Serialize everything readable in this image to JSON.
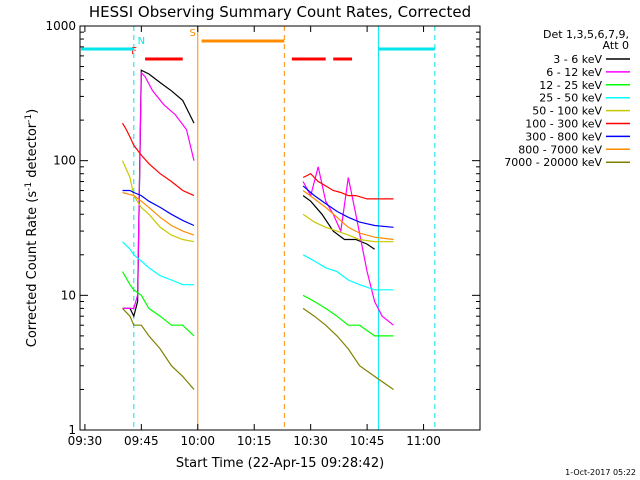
{
  "chart_data": {
    "type": "line",
    "title": "HESSI Observing Summary Count Rates, Corrected",
    "xlabel": "Start Time (22-Apr-15 09:28:42)",
    "ylabel": "Corrected Count Rate (s⁻¹ detector⁻¹)",
    "ylabel_main": "Corrected Count Rate (s",
    "ylabel_sup1": "-1",
    "ylabel_mid": " detector",
    "ylabel_sup2": "-1",
    "ylabel_end": ")",
    "yscale": "log",
    "ylim": [
      1,
      1000
    ],
    "xlim": [
      "09:28:42",
      "11:15:00"
    ],
    "x_ticks": [
      "09:30",
      "09:45",
      "10:00",
      "10:15",
      "10:30",
      "10:45",
      "11:00"
    ],
    "y_ticks": [
      "1",
      "10",
      "100",
      "1000"
    ],
    "footer_stamp": "1-Oct-2017 05:22",
    "legend": {
      "position": "right",
      "header": [
        "Det 1,3,5,6,7,9,",
        "Att 0"
      ]
    },
    "flag_markers": [
      {
        "label": "F",
        "color": "#ff0000",
        "segments": [
          [
            "09:46",
            "09:56"
          ],
          [
            "10:25",
            "10:34"
          ],
          [
            "10:36",
            "10:41"
          ]
        ]
      },
      {
        "label": "N",
        "color": "#00e5ee",
        "segments": [
          [
            "09:29",
            "09:43"
          ],
          [
            "10:48",
            "11:03"
          ]
        ]
      },
      {
        "label": "S",
        "color": "#ff8c00",
        "segments": [
          [
            "10:01",
            "10:23"
          ]
        ]
      }
    ],
    "vertical_lines": [
      {
        "time": "09:43",
        "color": "#00e5ee",
        "style": "dashed"
      },
      {
        "time": "10:00",
        "color": "#ff8c00",
        "style": "solid"
      },
      {
        "time": "10:23",
        "color": "#ff8c00",
        "style": "dashed"
      },
      {
        "time": "10:48",
        "color": "#00e5ee",
        "style": "solid"
      },
      {
        "time": "11:03",
        "color": "#00e5ee",
        "style": "dashed"
      }
    ],
    "series": [
      {
        "name": "3 - 6 keV",
        "color": "#000000",
        "segments": [
          {
            "x": [
              "09:40",
              "09:42",
              "09:43",
              "09:44",
              "09:45",
              "09:47",
              "09:50",
              "09:53",
              "09:56",
              "09:59"
            ],
            "y": [
              8,
              8,
              7,
              9,
              470,
              440,
              380,
              330,
              280,
              190
            ]
          },
          {
            "x": [
              "10:28",
              "10:30",
              "10:33",
              "10:36",
              "10:39",
              "10:42",
              "10:45",
              "10:47"
            ],
            "y": [
              55,
              50,
              40,
              30,
              26,
              26,
              24,
              22
            ]
          }
        ]
      },
      {
        "name": "6 - 12 keV",
        "color": "#ff00ff",
        "segments": [
          {
            "x": [
              "09:40",
              "09:43",
              "09:44",
              "09:45",
              "09:46",
              "09:48",
              "09:51",
              "09:54",
              "09:57",
              "09:59"
            ],
            "y": [
              8,
              8,
              10,
              450,
              420,
              330,
              260,
              220,
              170,
              100
            ]
          },
          {
            "x": [
              "10:28",
              "10:30",
              "10:32",
              "10:34",
              "10:36",
              "10:38",
              "10:40",
              "10:42",
              "10:45",
              "10:47",
              "10:49",
              "10:52"
            ],
            "y": [
              70,
              55,
              90,
              50,
              40,
              30,
              75,
              40,
              15,
              9,
              7,
              6
            ]
          }
        ]
      },
      {
        "name": "12 - 25 keV",
        "color": "#00ff00",
        "segments": [
          {
            "x": [
              "09:40",
              "09:42",
              "09:43",
              "09:45",
              "09:47",
              "09:50",
              "09:53",
              "09:56",
              "09:59"
            ],
            "y": [
              15,
              12,
              11,
              10,
              8,
              7,
              6,
              6,
              5
            ]
          },
          {
            "x": [
              "10:28",
              "10:31",
              "10:34",
              "10:37",
              "10:40",
              "10:43",
              "10:47",
              "10:52"
            ],
            "y": [
              10,
              9,
              8,
              7,
              6,
              6,
              5,
              5
            ]
          }
        ]
      },
      {
        "name": "25 - 50 keV",
        "color": "#00ffff",
        "segments": [
          {
            "x": [
              "09:40",
              "09:42",
              "09:43",
              "09:45",
              "09:47",
              "09:50",
              "09:53",
              "09:56",
              "09:59"
            ],
            "y": [
              25,
              22,
              20,
              18,
              16,
              14,
              13,
              12,
              12
            ]
          },
          {
            "x": [
              "10:28",
              "10:31",
              "10:34",
              "10:37",
              "10:40",
              "10:43",
              "10:47",
              "10:52"
            ],
            "y": [
              20,
              18,
              16,
              15,
              13,
              12,
              11,
              11
            ]
          }
        ]
      },
      {
        "name": "50 - 100 keV",
        "color": "#c8c800",
        "segments": [
          {
            "x": [
              "09:40",
              "09:42",
              "09:43",
              "09:45",
              "09:47",
              "09:50",
              "09:53",
              "09:56",
              "09:59"
            ],
            "y": [
              100,
              75,
              55,
              45,
              40,
              32,
              28,
              26,
              25
            ]
          },
          {
            "x": [
              "10:28",
              "10:31",
              "10:34",
              "10:37",
              "10:40",
              "10:43",
              "10:47",
              "10:52"
            ],
            "y": [
              40,
              35,
              32,
              30,
              28,
              26,
              25,
              25
            ]
          }
        ]
      },
      {
        "name": "100 - 300 keV",
        "color": "#ff0000",
        "segments": [
          {
            "x": [
              "09:40",
              "09:41",
              "09:42",
              "09:43",
              "09:45",
              "09:47",
              "09:50",
              "09:53",
              "09:56",
              "09:59"
            ],
            "y": [
              190,
              170,
              150,
              130,
              110,
              95,
              80,
              70,
              60,
              55
            ]
          },
          {
            "x": [
              "10:28",
              "10:30",
              "10:32",
              "10:34",
              "10:36",
              "10:38",
              "10:40",
              "10:42",
              "10:45",
              "10:47",
              "10:49",
              "10:52"
            ],
            "y": [
              75,
              80,
              70,
              65,
              60,
              58,
              55,
              55,
              52,
              52,
              52,
              52
            ]
          }
        ]
      },
      {
        "name": "300 - 800 keV",
        "color": "#0000ff",
        "segments": [
          {
            "x": [
              "09:40",
              "09:42",
              "09:43",
              "09:45",
              "09:47",
              "09:50",
              "09:53",
              "09:56",
              "09:59"
            ],
            "y": [
              60,
              60,
              58,
              55,
              50,
              45,
              40,
              36,
              33
            ]
          },
          {
            "x": [
              "10:28",
              "10:31",
              "10:34",
              "10:37",
              "10:40",
              "10:43",
              "10:47",
              "10:52"
            ],
            "y": [
              65,
              55,
              48,
              42,
              38,
              35,
              33,
              32
            ]
          }
        ]
      },
      {
        "name": "800 - 7000 keV",
        "color": "#ff8c00",
        "segments": [
          {
            "x": [
              "09:40",
              "09:42",
              "09:43",
              "09:45",
              "09:47",
              "09:50",
              "09:53",
              "09:56",
              "09:59"
            ],
            "y": [
              58,
              56,
              55,
              50,
              45,
              38,
              33,
              30,
              28
            ]
          },
          {
            "x": [
              "10:28",
              "10:31",
              "10:34",
              "10:37",
              "10:40",
              "10:43",
              "10:47",
              "10:52"
            ],
            "y": [
              60,
              52,
              45,
              38,
              32,
              29,
              27,
              26
            ]
          }
        ]
      },
      {
        "name": "7000 - 20000 keV",
        "color": "#808000",
        "segments": [
          {
            "x": [
              "09:40",
              "09:42",
              "09:43",
              "09:45",
              "09:47",
              "09:50",
              "09:53",
              "09:56",
              "09:59"
            ],
            "y": [
              8,
              7,
              6,
              6,
              5,
              4,
              3,
              2.5,
              2
            ]
          },
          {
            "x": [
              "10:28",
              "10:31",
              "10:34",
              "10:37",
              "10:40",
              "10:43",
              "10:47",
              "10:52"
            ],
            "y": [
              8,
              7,
              6,
              5,
              4,
              3,
              2.5,
              2
            ]
          }
        ]
      }
    ]
  }
}
